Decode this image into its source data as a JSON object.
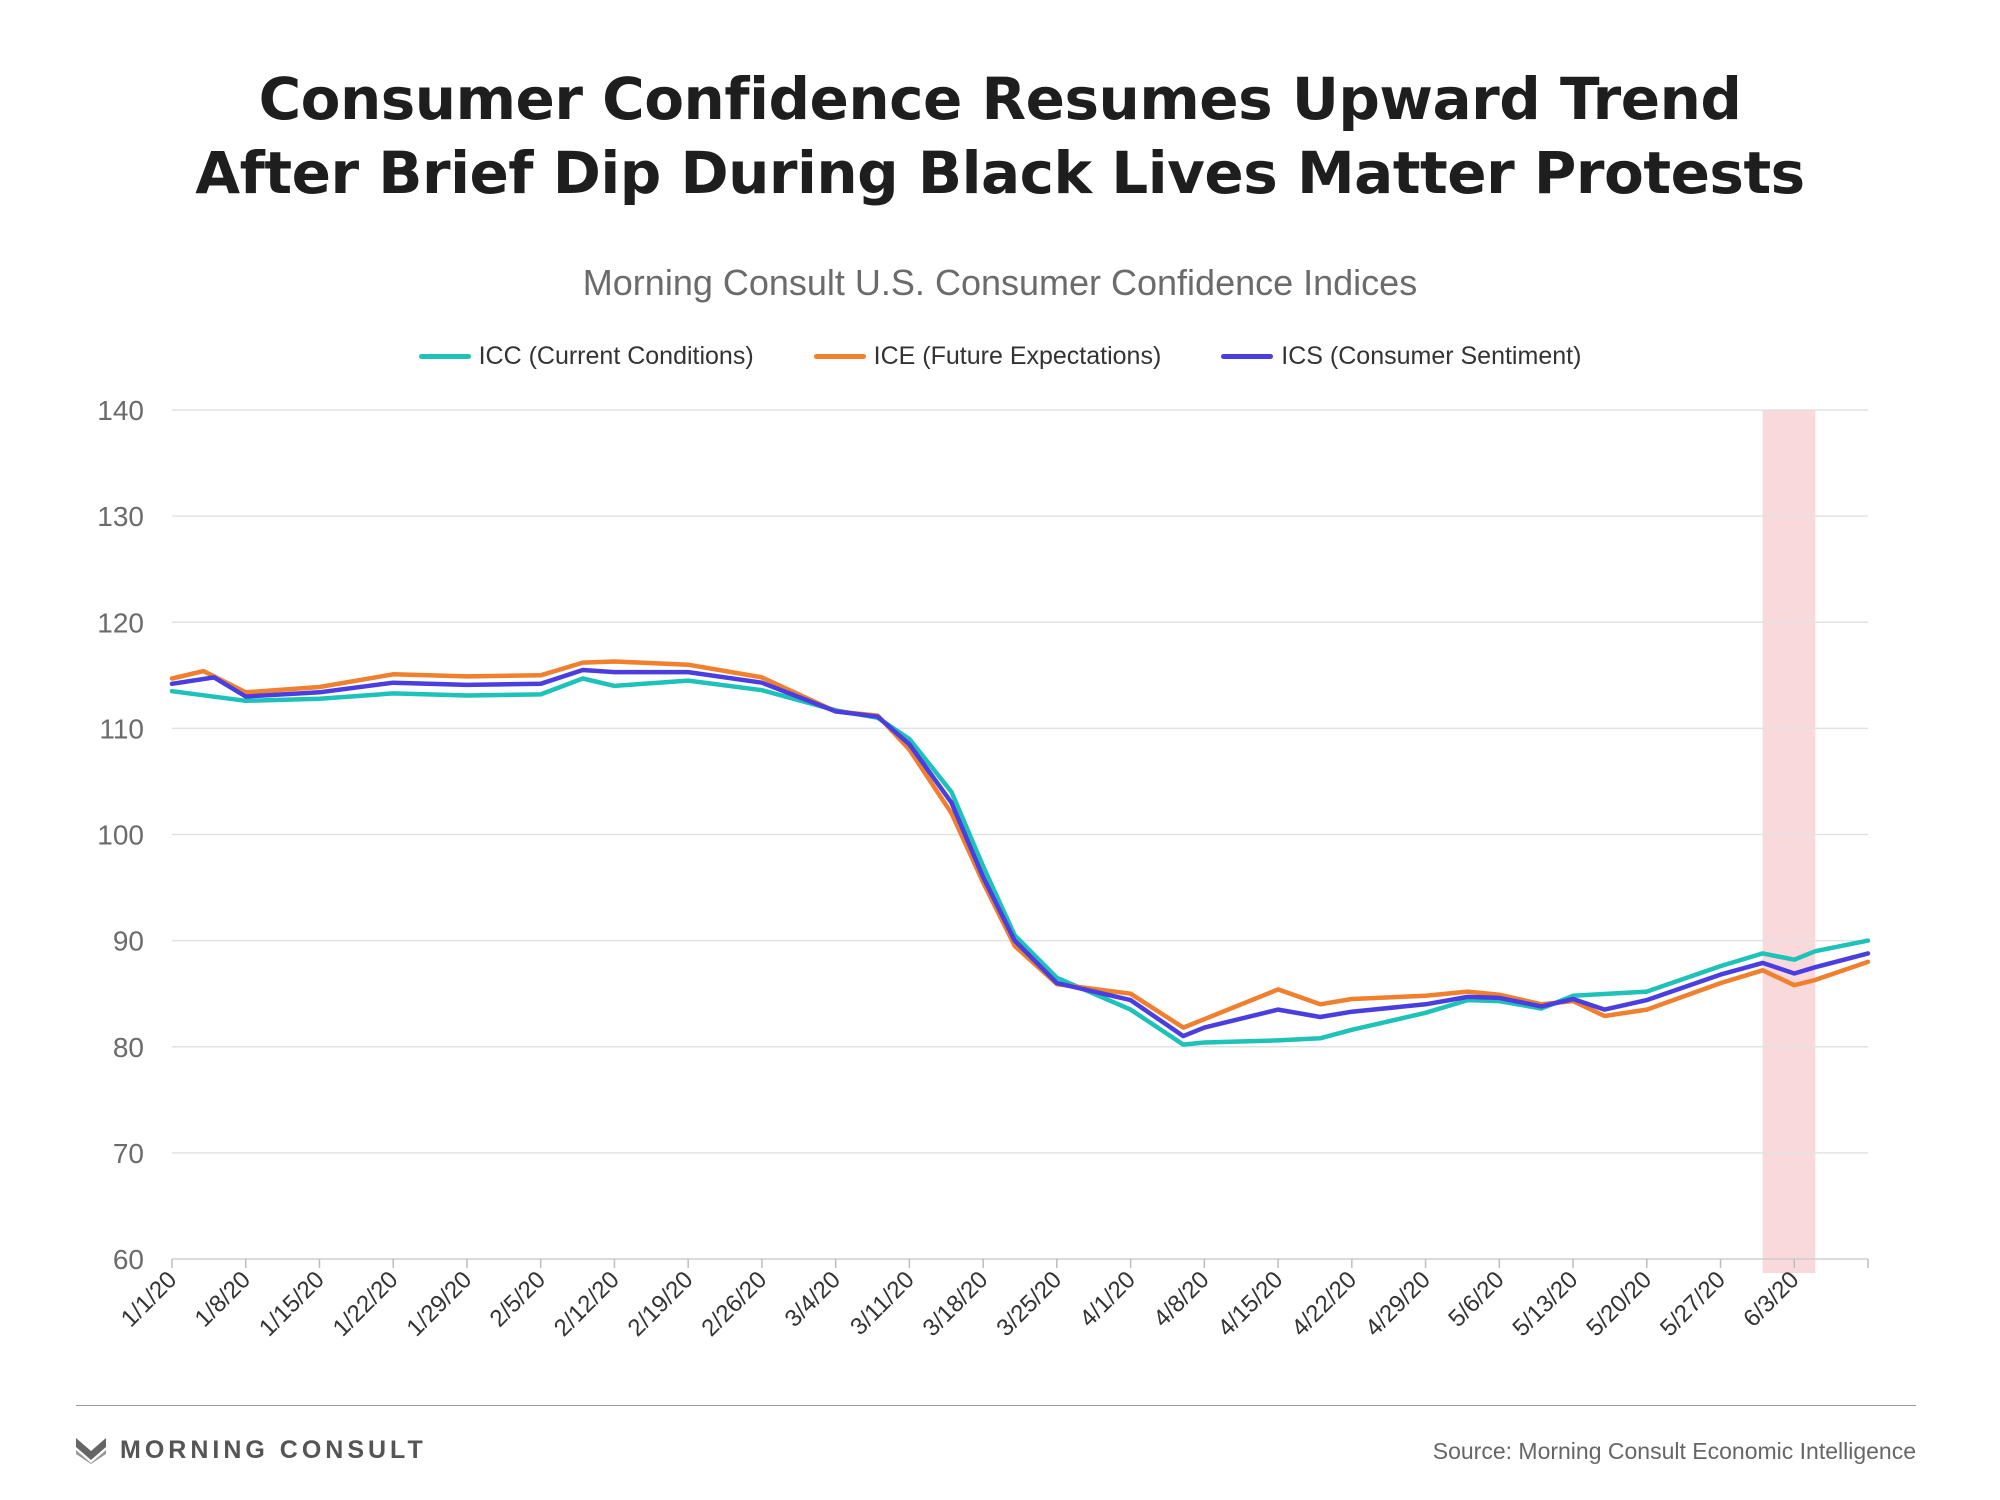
{
  "title_line1": "Consumer Confidence Resumes Upward Trend",
  "title_line2": "After Brief Dip During Black Lives Matter Protests",
  "source": "Source: Morning Consult Economic Intelligence",
  "brand": "MORNING CONSULT",
  "brand_icon": "morning-consult-logo-icon",
  "colors": {
    "ICC": "#1fc2b8",
    "ICE": "#f07f2e",
    "ICS": "#4b3ee0",
    "highlight": "#f9d9dc",
    "grid": "#e2e2e2"
  },
  "chart_data": {
    "type": "line",
    "title": "Morning Consult U.S. Consumer Confidence Indices",
    "xlabel": "",
    "ylabel": "",
    "ylim": [
      60,
      140
    ],
    "yticks": [
      60,
      70,
      80,
      90,
      100,
      110,
      120,
      130,
      140
    ],
    "grid": true,
    "legend_position": "top-center",
    "xtick_labels": [
      "1/1/20",
      "1/8/20",
      "1/15/20",
      "1/22/20",
      "1/29/20",
      "2/5/20",
      "2/12/20",
      "2/19/20",
      "2/26/20",
      "3/4/20",
      "3/11/20",
      "3/18/20",
      "3/25/20",
      "4/1/20",
      "4/8/20",
      "4/15/20",
      "4/22/20",
      "4/29/20",
      "5/6/20",
      "5/13/20",
      "5/20/20",
      "5/27/20",
      "6/3/20"
    ],
    "x_start": "1/1/20",
    "x_end": "6/10/20",
    "highlight_range": [
      "5/31/20",
      "6/5/20"
    ],
    "series": [
      {
        "name": "ICC (Current Conditions)",
        "key": "ICC",
        "points": [
          [
            "1/1/20",
            113.5
          ],
          [
            "1/8/20",
            112.6
          ],
          [
            "1/15/20",
            112.8
          ],
          [
            "1/22/20",
            113.3
          ],
          [
            "1/29/20",
            113.1
          ],
          [
            "2/5/20",
            113.2
          ],
          [
            "2/9/20",
            114.7
          ],
          [
            "2/12/20",
            114.0
          ],
          [
            "2/19/20",
            114.5
          ],
          [
            "2/26/20",
            113.6
          ],
          [
            "3/4/20",
            111.7
          ],
          [
            "3/8/20",
            111.0
          ],
          [
            "3/11/20",
            109.0
          ],
          [
            "3/15/20",
            104.0
          ],
          [
            "3/18/20",
            97.0
          ],
          [
            "3/21/20",
            90.5
          ],
          [
            "3/25/20",
            86.5
          ],
          [
            "4/1/20",
            83.5
          ],
          [
            "4/6/20",
            80.2
          ],
          [
            "4/8/20",
            80.4
          ],
          [
            "4/15/20",
            80.6
          ],
          [
            "4/19/20",
            80.8
          ],
          [
            "4/22/20",
            81.6
          ],
          [
            "4/29/20",
            83.2
          ],
          [
            "5/3/20",
            84.4
          ],
          [
            "5/6/20",
            84.3
          ],
          [
            "5/10/20",
            83.6
          ],
          [
            "5/13/20",
            84.8
          ],
          [
            "5/20/20",
            85.2
          ],
          [
            "5/27/20",
            87.6
          ],
          [
            "5/31/20",
            88.8
          ],
          [
            "6/3/20",
            88.2
          ],
          [
            "6/5/20",
            89.0
          ],
          [
            "6/10/20",
            90.0
          ]
        ]
      },
      {
        "name": "ICE (Future Expectations)",
        "key": "ICE",
        "points": [
          [
            "1/1/20",
            114.7
          ],
          [
            "1/4/20",
            115.4
          ],
          [
            "1/8/20",
            113.4
          ],
          [
            "1/15/20",
            113.9
          ],
          [
            "1/22/20",
            115.1
          ],
          [
            "1/29/20",
            114.9
          ],
          [
            "2/5/20",
            115.0
          ],
          [
            "2/9/20",
            116.2
          ],
          [
            "2/12/20",
            116.3
          ],
          [
            "2/19/20",
            116.0
          ],
          [
            "2/26/20",
            114.8
          ],
          [
            "3/4/20",
            111.6
          ],
          [
            "3/8/20",
            111.2
          ],
          [
            "3/11/20",
            108.0
          ],
          [
            "3/15/20",
            102.0
          ],
          [
            "3/18/20",
            95.5
          ],
          [
            "3/21/20",
            89.5
          ],
          [
            "3/25/20",
            85.9
          ],
          [
            "4/1/20",
            85.0
          ],
          [
            "4/6/20",
            81.8
          ],
          [
            "4/8/20",
            82.6
          ],
          [
            "4/15/20",
            85.4
          ],
          [
            "4/19/20",
            84.0
          ],
          [
            "4/22/20",
            84.5
          ],
          [
            "4/29/20",
            84.8
          ],
          [
            "5/3/20",
            85.2
          ],
          [
            "5/6/20",
            84.9
          ],
          [
            "5/10/20",
            84.0
          ],
          [
            "5/13/20",
            84.3
          ],
          [
            "5/16/20",
            82.9
          ],
          [
            "5/20/20",
            83.5
          ],
          [
            "5/27/20",
            86.0
          ],
          [
            "5/31/20",
            87.2
          ],
          [
            "6/3/20",
            85.8
          ],
          [
            "6/5/20",
            86.3
          ],
          [
            "6/10/20",
            88.0
          ]
        ]
      },
      {
        "name": "ICS (Consumer Sentiment)",
        "key": "ICS",
        "points": [
          [
            "1/1/20",
            114.2
          ],
          [
            "1/5/20",
            114.8
          ],
          [
            "1/8/20",
            113.0
          ],
          [
            "1/15/20",
            113.4
          ],
          [
            "1/22/20",
            114.3
          ],
          [
            "1/29/20",
            114.1
          ],
          [
            "2/5/20",
            114.2
          ],
          [
            "2/9/20",
            115.5
          ],
          [
            "2/12/20",
            115.3
          ],
          [
            "2/19/20",
            115.3
          ],
          [
            "2/26/20",
            114.3
          ],
          [
            "3/4/20",
            111.6
          ],
          [
            "3/8/20",
            111.1
          ],
          [
            "3/11/20",
            108.5
          ],
          [
            "3/15/20",
            103.0
          ],
          [
            "3/18/20",
            96.0
          ],
          [
            "3/21/20",
            90.0
          ],
          [
            "3/25/20",
            86.0
          ],
          [
            "4/1/20",
            84.4
          ],
          [
            "4/6/20",
            81.0
          ],
          [
            "4/8/20",
            81.8
          ],
          [
            "4/15/20",
            83.5
          ],
          [
            "4/19/20",
            82.8
          ],
          [
            "4/22/20",
            83.3
          ],
          [
            "4/29/20",
            84.0
          ],
          [
            "5/3/20",
            84.7
          ],
          [
            "5/6/20",
            84.6
          ],
          [
            "5/10/20",
            83.8
          ],
          [
            "5/13/20",
            84.5
          ],
          [
            "5/16/20",
            83.5
          ],
          [
            "5/20/20",
            84.4
          ],
          [
            "5/27/20",
            86.8
          ],
          [
            "5/31/20",
            87.9
          ],
          [
            "6/3/20",
            86.9
          ],
          [
            "6/5/20",
            87.5
          ],
          [
            "6/10/20",
            88.8
          ]
        ]
      }
    ]
  }
}
